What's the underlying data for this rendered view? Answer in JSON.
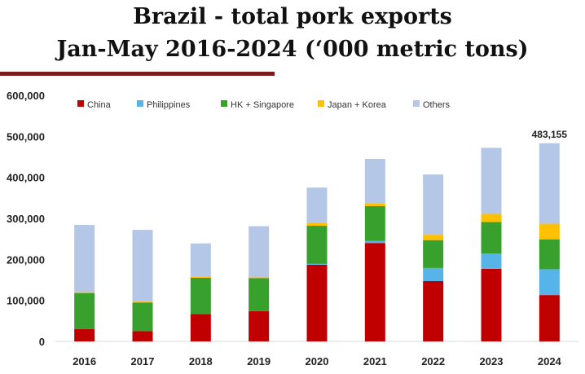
{
  "title": {
    "line1": "Brazil - total pork exports",
    "line2": "Jan-May 2016-2024 (‘000 metric tons)"
  },
  "chart_data": {
    "type": "bar",
    "stacked": true,
    "categories": [
      "2016",
      "2017",
      "2018",
      "2019",
      "2020",
      "2021",
      "2022",
      "2023",
      "2024"
    ],
    "series": [
      {
        "name": "China",
        "color": "#c00000",
        "values": [
          30000,
          25000,
          67000,
          74000,
          187000,
          240000,
          147000,
          177000,
          113000
        ]
      },
      {
        "name": "Philippines",
        "color": "#56b4e9",
        "values": [
          0,
          0,
          0,
          0,
          2000,
          5000,
          32000,
          37000,
          63000
        ]
      },
      {
        "name": "HK + Singapore",
        "color": "#38a02c",
        "values": [
          88000,
          70000,
          88000,
          80000,
          93000,
          85000,
          68000,
          77000,
          73000
        ]
      },
      {
        "name": "Japan + Korea",
        "color": "#ffc000",
        "values": [
          2000,
          2000,
          2000,
          2000,
          7000,
          7000,
          13000,
          20000,
          38000
        ]
      },
      {
        "name": "Others",
        "color": "#b4c7e7",
        "values": [
          164000,
          175000,
          82000,
          125000,
          86000,
          108000,
          147000,
          161000,
          196155
        ]
      }
    ],
    "ylim": [
      0,
      600000
    ],
    "yticks": [
      0,
      100000,
      200000,
      300000,
      400000,
      500000,
      600000
    ],
    "ytick_labels": [
      "0",
      "100,000",
      "200,000",
      "300,000",
      "400,000",
      "500,000",
      "600,000"
    ],
    "annotation": {
      "category": "2024",
      "text": "483,155"
    },
    "legend_position": "top",
    "grid": false
  }
}
